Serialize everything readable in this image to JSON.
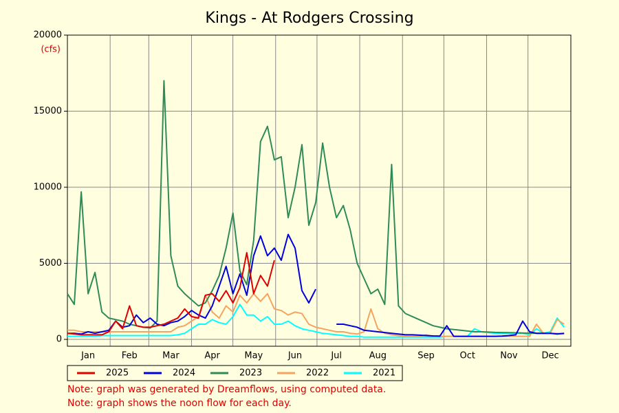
{
  "chart_data": {
    "type": "line",
    "title": "Kings - At Rodgers Crossing",
    "y_unit_label": "(cfs)",
    "notes": [
      "Note: graph was generated by Dreamflows, using computed data.",
      "Note: graph shows the noon flow for each day."
    ],
    "legend": "bottom",
    "grid": true,
    "ylim": [
      -450,
      20000
    ],
    "yticks": [
      0,
      5000,
      10000,
      15000,
      20000
    ],
    "categories": [
      null,
      null,
      null,
      "Jan",
      null,
      null,
      null,
      null,
      null,
      "Feb",
      null,
      null,
      null,
      null,
      null,
      "Mar",
      null,
      null,
      null,
      null,
      null,
      "Apr",
      null,
      null,
      null,
      null,
      null,
      "May",
      null,
      null,
      null,
      null,
      null,
      "Jun",
      null,
      null,
      null,
      null,
      null,
      "Jul",
      null,
      null,
      null,
      null,
      null,
      "Aug",
      null,
      null,
      null,
      null,
      null,
      null,
      "Sep",
      null,
      null,
      null,
      null,
      null,
      "Oct",
      null,
      null,
      null,
      null,
      null,
      "Nov",
      null,
      null,
      null,
      null,
      null,
      "Dec",
      null,
      null
    ],
    "series": [
      {
        "name": "2025",
        "color": "#e00000",
        "values": [
          400,
          350,
          300,
          300,
          300,
          300,
          500,
          1200,
          700,
          2200,
          900,
          800,
          800,
          900,
          1000,
          1200,
          1400,
          2000,
          1500,
          1400,
          2900,
          3000,
          2500,
          3200,
          2400,
          3400,
          5700,
          3000,
          4200,
          3500,
          5200,
          null,
          null,
          null,
          null,
          null,
          null,
          null,
          null,
          null,
          null,
          null,
          null,
          null,
          null,
          null,
          null,
          null,
          null,
          null,
          null,
          null,
          null,
          null,
          null,
          null,
          null,
          null,
          null,
          null,
          null,
          null,
          null,
          null,
          null,
          null,
          null,
          null,
          null,
          null,
          null,
          null,
          null
        ]
      },
      {
        "name": "2024",
        "color": "#0000dd",
        "values": [
          400,
          400,
          350,
          500,
          400,
          500,
          600,
          1200,
          800,
          900,
          1600,
          1100,
          1400,
          1000,
          900,
          1100,
          1200,
          1500,
          1900,
          1600,
          1400,
          2200,
          3500,
          4800,
          3000,
          4300,
          2900,
          5500,
          6800,
          5500,
          6000,
          5200,
          6900,
          6000,
          3200,
          2400,
          3300,
          null,
          null,
          1000,
          1000,
          900,
          800,
          600,
          550,
          500,
          450,
          400,
          350,
          300,
          300,
          280,
          250,
          230,
          220,
          900,
          200,
          200,
          200,
          200,
          200,
          200,
          200,
          220,
          250,
          300,
          1200,
          500,
          400,
          400,
          400,
          350,
          400
        ]
      },
      {
        "name": "2023",
        "color": "#2e8b57",
        "values": [
          3000,
          2300,
          9700,
          3000,
          4400,
          1800,
          1400,
          1300,
          1200,
          1000,
          900,
          800,
          750,
          1200,
          17000,
          5500,
          3500,
          3000,
          2600,
          2200,
          2400,
          3200,
          4200,
          6000,
          8300,
          4500,
          3600,
          6500,
          13000,
          14000,
          11800,
          12000,
          8000,
          10000,
          12800,
          7500,
          9000,
          12900,
          10000,
          8000,
          8800,
          7200,
          5000,
          4000,
          3000,
          3300,
          2300,
          11500,
          2200,
          1700,
          1500,
          1300,
          1100,
          900,
          800,
          700,
          650,
          600,
          550,
          500,
          500,
          480,
          460,
          450,
          440,
          430,
          420,
          410,
          400,
          400,
          400,
          380,
          380
        ]
      },
      {
        "name": "2022",
        "color": "#f4a460",
        "values": [
          600,
          600,
          500,
          500,
          500,
          500,
          500,
          500,
          500,
          500,
          500,
          500,
          500,
          500,
          500,
          500,
          800,
          900,
          1200,
          1500,
          2900,
          1800,
          1400,
          2200,
          1800,
          2900,
          2400,
          3000,
          2500,
          3000,
          2000,
          1900,
          1600,
          1800,
          1700,
          1000,
          800,
          700,
          600,
          500,
          500,
          400,
          350,
          500,
          2000,
          700,
          400,
          300,
          250,
          200,
          200,
          200,
          300,
          200,
          200,
          200,
          200,
          200,
          200,
          200,
          200,
          200,
          200,
          200,
          200,
          200,
          200,
          200,
          1000,
          400,
          400,
          1300,
          1000
        ]
      },
      {
        "name": "2021",
        "color": "#00ffff",
        "values": [
          200,
          200,
          200,
          200,
          200,
          250,
          250,
          250,
          250,
          250,
          250,
          250,
          250,
          250,
          250,
          250,
          300,
          400,
          700,
          1000,
          1000,
          1300,
          1100,
          1000,
          1500,
          2300,
          1600,
          1600,
          1200,
          1500,
          1000,
          1000,
          1200,
          900,
          700,
          600,
          500,
          400,
          350,
          300,
          250,
          200,
          200,
          150,
          150,
          150,
          150,
          150,
          150,
          150,
          150,
          150,
          150,
          150,
          150,
          200,
          200,
          200,
          200,
          700,
          500,
          450,
          400,
          400,
          400,
          400,
          400,
          300,
          700,
          400,
          500,
          1400,
          800
        ]
      }
    ]
  }
}
